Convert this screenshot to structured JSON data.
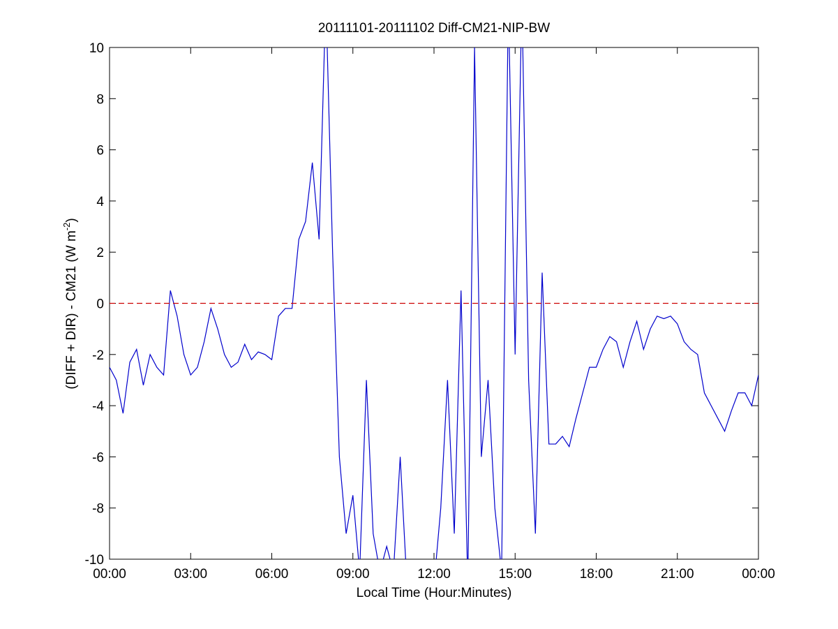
{
  "chart_data": {
    "type": "line",
    "title": "20111101-20111102 Diff-CM21-NIP-BW",
    "xlabel": "Local Time (Hour:Minutes)",
    "ylabel": {
      "text": "(DIFF + DIR) - CM21 (W m",
      "superscript": "-2",
      "suffix": ")"
    },
    "x": [
      0,
      0.25,
      0.5,
      0.75,
      1,
      1.25,
      1.5,
      1.75,
      2,
      2.25,
      2.5,
      2.75,
      3,
      3.25,
      3.5,
      3.75,
      4,
      4.25,
      4.5,
      4.75,
      5,
      5.25,
      5.5,
      5.75,
      6,
      6.25,
      6.5,
      6.75,
      7,
      7.25,
      7.5,
      7.75,
      8,
      8.25,
      8.5,
      8.75,
      9,
      9.25,
      9.5,
      9.75,
      10,
      10.25,
      10.5,
      10.75,
      11,
      11.25,
      11.5,
      11.75,
      12,
      12.25,
      12.5,
      12.75,
      13,
      13.25,
      13.5,
      13.75,
      14,
      14.25,
      14.5,
      14.75,
      15,
      15.25,
      15.5,
      15.75,
      16,
      16.25,
      16.5,
      16.75,
      17,
      17.25,
      17.5,
      17.75,
      18,
      18.25,
      18.5,
      18.75,
      19,
      19.25,
      19.5,
      19.75,
      20,
      20.25,
      20.5,
      20.75,
      21,
      21.25,
      21.5,
      21.75,
      22,
      22.25,
      22.5,
      22.75,
      23,
      23.25,
      23.5,
      23.75,
      24
    ],
    "series": [
      {
        "name": "Diff-CM21-NIP-BW",
        "color": "#0000cc",
        "values": [
          -2.5,
          -3.0,
          -4.3,
          -2.3,
          -1.8,
          -3.2,
          -2.0,
          -2.5,
          -2.8,
          0.5,
          -0.5,
          -2.0,
          -2.8,
          -2.5,
          -1.5,
          -0.2,
          -1.0,
          -2.0,
          -2.5,
          -2.3,
          -1.6,
          -2.2,
          -1.9,
          -2.0,
          -2.2,
          -0.5,
          -0.2,
          -0.2,
          2.5,
          3.2,
          5.5,
          2.5,
          12,
          2.0,
          -6,
          -9,
          -7.5,
          -10.5,
          -3,
          -9,
          -10.5,
          -9.5,
          -10.5,
          -6,
          -11,
          -11,
          -11,
          -11,
          -11,
          -8,
          -3,
          -9,
          0.5,
          -11,
          10,
          -6,
          -3,
          -8,
          -10.5,
          12,
          -2,
          12,
          -3,
          -9,
          1.2,
          -5.5,
          -5.5,
          -5.2,
          -5.6,
          -4.5,
          -3.5,
          -2.5,
          -2.5,
          -1.8,
          -1.3,
          -1.5,
          -2.5,
          -1.5,
          -0.7,
          -1.8,
          -1.0,
          -0.5,
          -0.6,
          -0.5,
          -0.8,
          -1.5,
          -1.8,
          -2.0,
          -3.5,
          -4.0,
          -4.5,
          -5.0,
          -4.2,
          -3.5,
          -3.5,
          -4.0,
          -2.8
        ]
      }
    ],
    "reference_line": {
      "value": 0,
      "color": "#cc0000",
      "style": "dashed"
    },
    "xlim": [
      0,
      24
    ],
    "xticks": [
      {
        "value": 0,
        "label": "00:00"
      },
      {
        "value": 3,
        "label": "03:00"
      },
      {
        "value": 6,
        "label": "06:00"
      },
      {
        "value": 9,
        "label": "09:00"
      },
      {
        "value": 12,
        "label": "12:00"
      },
      {
        "value": 15,
        "label": "15:00"
      },
      {
        "value": 18,
        "label": "18:00"
      },
      {
        "value": 21,
        "label": "21:00"
      },
      {
        "value": 24,
        "label": "00:00"
      }
    ],
    "ylim": [
      -10,
      10
    ],
    "yticks": [
      -10,
      -8,
      -6,
      -4,
      -2,
      0,
      2,
      4,
      6,
      8,
      10
    ],
    "grid": false
  }
}
